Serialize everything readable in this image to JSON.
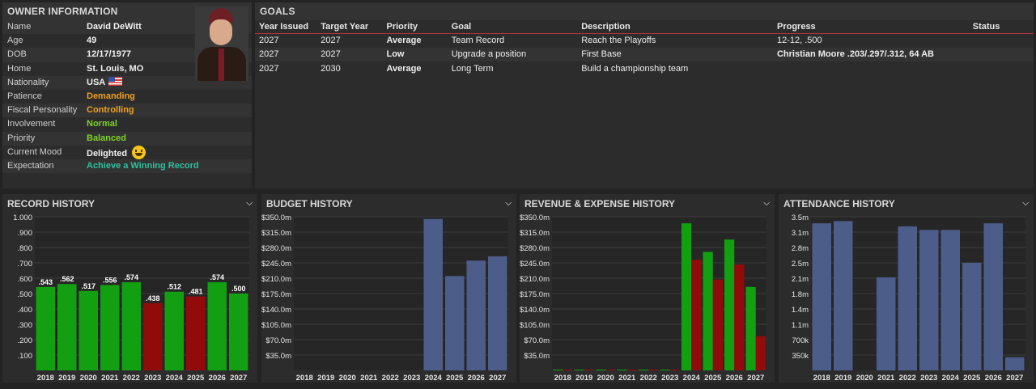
{
  "owner": {
    "title": "OWNER INFORMATION",
    "rows": [
      {
        "k": "Name",
        "v": "David DeWitt",
        "c": ""
      },
      {
        "k": "Age",
        "v": "49",
        "c": ""
      },
      {
        "k": "DOB",
        "v": "12/17/1977",
        "c": ""
      },
      {
        "k": "Home",
        "v": "St. Louis, MO",
        "c": ""
      },
      {
        "k": "Nationality",
        "v": "USA",
        "c": "",
        "icon": "flag"
      },
      {
        "k": "Patience",
        "v": "Demanding",
        "c": "orange"
      },
      {
        "k": "Fiscal Personality",
        "v": "Controlling",
        "c": "orange"
      },
      {
        "k": "Involvement",
        "v": "Normal",
        "c": "green"
      },
      {
        "k": "Priority",
        "v": "Balanced",
        "c": "green"
      },
      {
        "k": "Current Mood",
        "v": "Delighted",
        "c": "",
        "icon": "emoji"
      },
      {
        "k": "Expectation",
        "v": "Achieve a Winning Record",
        "c": "teal"
      }
    ]
  },
  "goals": {
    "title": "GOALS",
    "headers": [
      "Year Issued",
      "Target Year",
      "Priority",
      "Goal",
      "Description",
      "Progress",
      "Status"
    ],
    "rows": [
      [
        "2027",
        "2027",
        "Average",
        "Team Record",
        "Reach the Playoffs",
        "12-12, .500",
        ""
      ],
      [
        "2027",
        "2027",
        "Low",
        "Upgrade a position",
        "First Base",
        "Christian Moore .203/.297/.312, 64 AB",
        ""
      ],
      [
        "2027",
        "2030",
        "Average",
        "Long Term",
        "Build a championship team",
        "",
        ""
      ]
    ]
  },
  "charts": {
    "record": {
      "title": "RECORD HISTORY"
    },
    "budget": {
      "title": "BUDGET HISTORY"
    },
    "revexp": {
      "title": "REVENUE & EXPENSE HISTORY"
    },
    "attendance": {
      "title": "ATTENDANCE HISTORY"
    }
  },
  "colors": {
    "green": "#12a012",
    "red": "#920b0b",
    "blue": "#4d5d8a"
  },
  "chart_data": [
    {
      "type": "bar",
      "title": "RECORD HISTORY",
      "categories": [
        "2018",
        "2019",
        "2020",
        "2021",
        "2022",
        "2023",
        "2024",
        "2025",
        "2026",
        "2027"
      ],
      "values": [
        0.543,
        0.562,
        0.517,
        0.556,
        0.574,
        0.438,
        0.512,
        0.481,
        0.574,
        0.5
      ],
      "labels": [
        ".543",
        ".562",
        ".517",
        ".556",
        ".574",
        ".438",
        ".512",
        ".481",
        ".574",
        ".500"
      ],
      "colors": [
        "green",
        "green",
        "green",
        "green",
        "green",
        "red",
        "green",
        "red",
        "green",
        "green"
      ],
      "ylim": [
        0,
        1
      ],
      "yticks": [
        "1.000",
        ".900",
        ".800",
        ".700",
        ".600",
        ".500",
        ".400",
        ".300",
        ".200",
        ".100"
      ]
    },
    {
      "type": "bar",
      "title": "BUDGET HISTORY",
      "categories": [
        "2018",
        "2019",
        "2020",
        "2021",
        "2022",
        "2023",
        "2024",
        "2025",
        "2026",
        "2027"
      ],
      "values": [
        0,
        0,
        0,
        0,
        0,
        0,
        345,
        215,
        250,
        260
      ],
      "ylim": [
        0,
        350
      ],
      "yticks": [
        "$350.0m",
        "$315.0m",
        "$280.0m",
        "$245.0m",
        "$210.0m",
        "$175.0m",
        "$140.0m",
        "$105.0m",
        "$70.0m",
        "$35.0m"
      ]
    },
    {
      "type": "bar",
      "title": "REVENUE & EXPENSE HISTORY",
      "categories": [
        "2018",
        "2019",
        "2020",
        "2021",
        "2022",
        "2023",
        "2024",
        "2025",
        "2026",
        "2027"
      ],
      "series": [
        {
          "name": "Revenue",
          "values": [
            0,
            0,
            0,
            0,
            0,
            0,
            335,
            270,
            298,
            190
          ]
        },
        {
          "name": "Expense",
          "values": [
            0,
            0,
            0,
            0,
            0,
            0,
            252,
            207,
            241,
            78
          ]
        }
      ],
      "ylim": [
        0,
        350
      ],
      "yticks": [
        "$350.0m",
        "$315.0m",
        "$280.0m",
        "$245.0m",
        "$210.0m",
        "$175.0m",
        "$140.0m",
        "$105.0m",
        "$70.0m",
        "$35.0m"
      ]
    },
    {
      "type": "bar",
      "title": "ATTENDANCE HISTORY",
      "categories": [
        "2018",
        "2019",
        "2020",
        "2021",
        "2022",
        "2023",
        "2024",
        "2025",
        "2026",
        "2027"
      ],
      "values": [
        3.35,
        3.4,
        0,
        2.12,
        3.28,
        3.2,
        3.2,
        2.45,
        3.35,
        0.3
      ],
      "ylim": [
        0,
        3.5
      ],
      "yticks": [
        "3.5m",
        "3.1m",
        "2.8m",
        "2.5m",
        "2.1m",
        "1.8m",
        "1.4m",
        "1.1m",
        "700k",
        "350k"
      ]
    }
  ]
}
